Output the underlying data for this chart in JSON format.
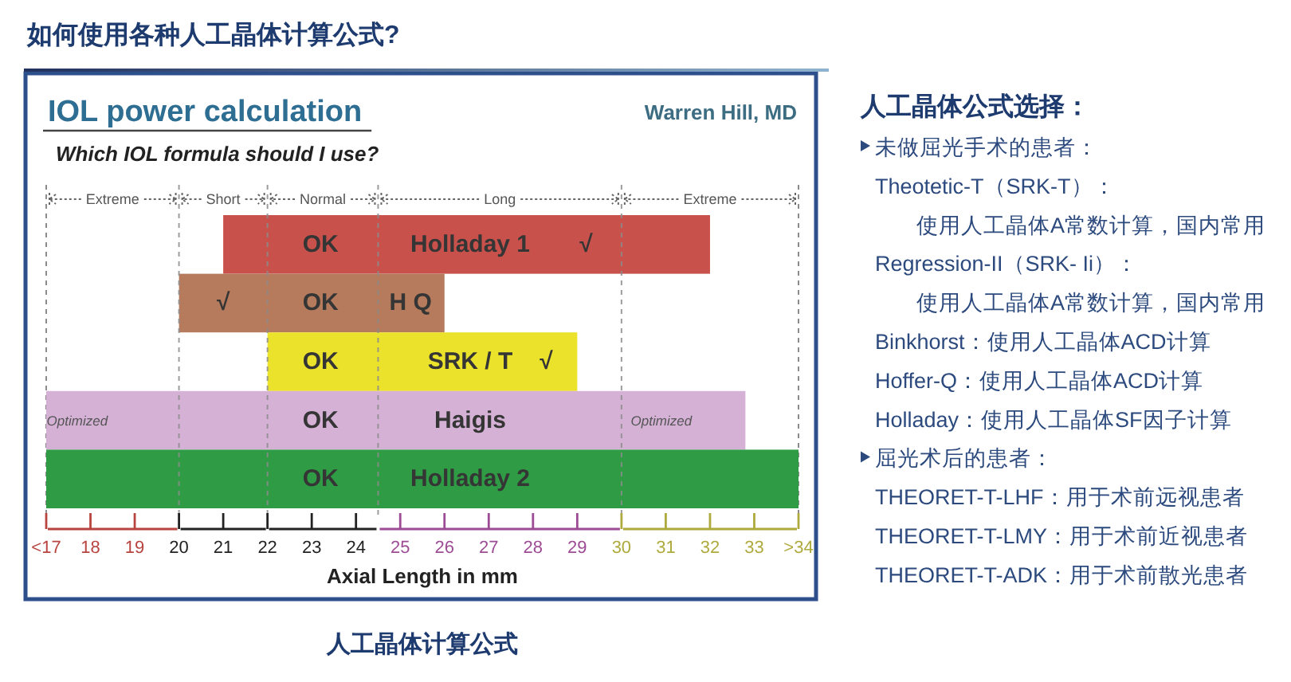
{
  "chart_data": [
    {
      "type": "bar",
      "orientation": "horizontal",
      "title": "IOL power calculation",
      "subtitle": "Which IOL formula should I use?",
      "xlabel": "Axial Length in mm",
      "categories": [
        "Holladay 1",
        "H Q",
        "SRK / T",
        "Haigis",
        "Holladay 2"
      ],
      "base": [
        21,
        20,
        22,
        17,
        17
      ],
      "values": [
        11,
        6,
        7,
        15.8,
        17
      ],
      "colors": [
        "#c9514b",
        "#b57b5c",
        "#ebe22c",
        "#d5b1d6",
        "#2f9b45"
      ],
      "xlim": [
        17,
        34
      ],
      "xticks": [
        {
          "value": 17,
          "label": "<17"
        },
        18,
        19,
        20,
        21,
        22,
        23,
        24,
        25,
        26,
        27,
        28,
        29,
        30,
        31,
        32,
        33,
        {
          "value": 34,
          "label": ">34"
        }
      ],
      "ref_lines": [
        {
          "axis": "x",
          "value": 20,
          "color": "#8c8c8c",
          "line_style": "dashed"
        },
        {
          "axis": "x",
          "value": 22,
          "color": "#8c8c8c",
          "line_style": "dashed"
        },
        {
          "axis": "x",
          "value": 24.5,
          "color": "#8c8c8c",
          "line_style": "dashed"
        },
        {
          "axis": "x",
          "value": 30,
          "color": "#8c8c8c",
          "line_style": "dashed"
        }
      ],
      "annotations": [
        "如何使用各种人工晶体计算公式?",
        "Warren Hill, MD",
        "Extreme",
        "人工晶体计算公式",
        {
          "text": "Short",
          "x": 20
        },
        {
          "text": "Normal",
          "x": 22
        },
        {
          "text": "Long",
          "x": 24.5
        },
        {
          "text": "Extreme",
          "x": 30
        },
        {
          "text": "OK",
          "x": 23.2,
          "y": "Holladay 1"
        },
        {
          "text": "OK",
          "x": 23.2,
          "y": "H Q"
        },
        {
          "text": "OK",
          "x": 23.2,
          "y": "SRK / T"
        },
        {
          "text": "OK",
          "x": 23.2,
          "y": "Haigis"
        },
        {
          "text": "OK",
          "x": 23.2,
          "y": "Holladay 2"
        },
        {
          "text": "√",
          "x": 29.2,
          "y": "Holladay 1"
        },
        {
          "text": "√",
          "x": 21,
          "y": "H Q"
        },
        {
          "text": "√",
          "x": 28.3,
          "y": "SRK / T"
        },
        {
          "text": "Optimized",
          "x": 17.7,
          "y": "Haigis"
        },
        {
          "text": "Optimized",
          "x": 30.9,
          "y": "Haigis"
        }
      ]
    },
    {
      "type": "other",
      "title": "人工晶体公式选择：",
      "annotations": [
        "未做屈光手术的患者：",
        "Theotetic-T（SRK-T）：",
        "使用人工晶体A常数计算，国内常用",
        "Regression-II（SRK- Ii）：",
        "使用人工晶体A常数计算，国内常用",
        "Binkhorst：使用人工晶体ACD计算",
        "Hoffer-Q：使用人工晶体ACD计算",
        "Holladay：使用人工晶体SF因子计算",
        "屈光术后的患者：",
        "THEORET-T-LHF：用于术前远视患者",
        "THEORET-T-LMY：用于术前近视患者",
        "THEORET-T-ADK：用于术前散光患者"
      ]
    }
  ]
}
